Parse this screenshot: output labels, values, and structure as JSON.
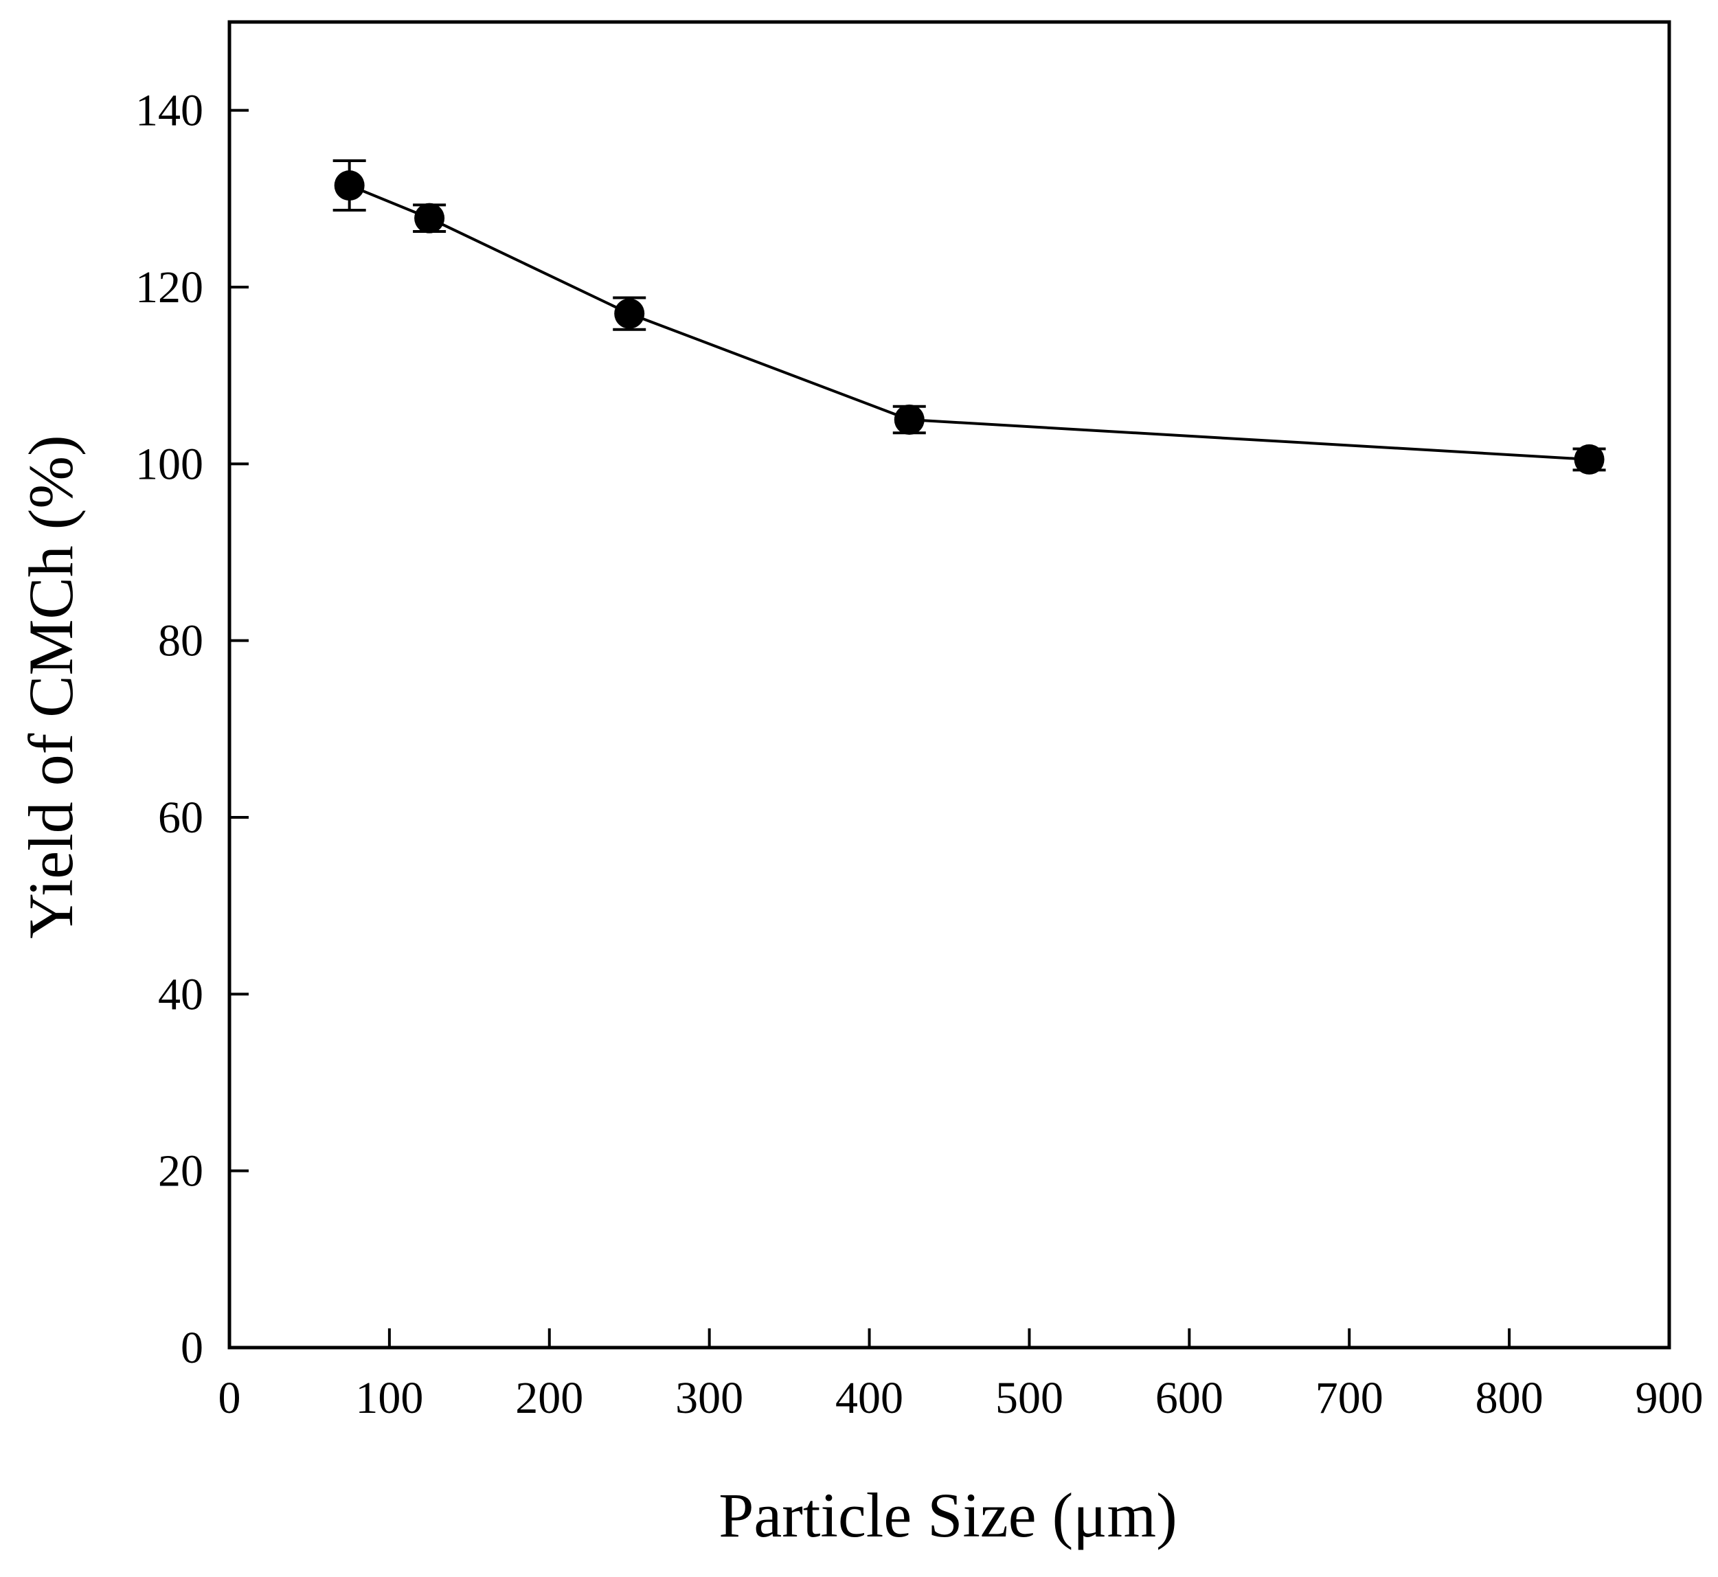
{
  "chart_data": {
    "type": "line",
    "title": "",
    "xlabel": "Particle Size (μm)",
    "ylabel": "Yield of CMCh (%)",
    "xlim": [
      0,
      900
    ],
    "ylim": [
      0,
      150
    ],
    "xticks": [
      0,
      100,
      200,
      300,
      400,
      500,
      600,
      700,
      800,
      900
    ],
    "yticks": [
      0,
      20,
      40,
      60,
      80,
      100,
      120,
      140
    ],
    "grid": false,
    "legend": "none",
    "series": [
      {
        "name": "Yield",
        "color": "#000000",
        "marker": "filled-circle",
        "x": [
          75,
          125,
          250,
          425,
          850
        ],
        "y": [
          131.5,
          127.8,
          117.0,
          105.0,
          100.5
        ],
        "error": [
          2.8,
          1.5,
          1.8,
          1.5,
          1.2
        ]
      }
    ]
  }
}
